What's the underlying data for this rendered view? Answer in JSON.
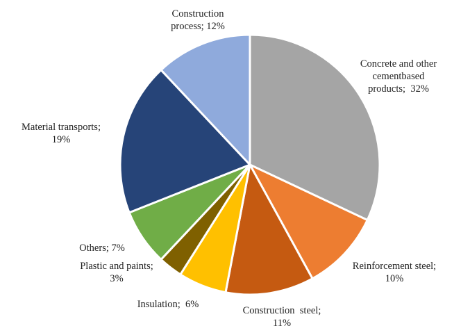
{
  "chart_data": {
    "type": "pie",
    "title": "",
    "slices": [
      {
        "label": "Concrete and other cementbased products",
        "text": "Concrete and other\ncementbased\nproducts;  32%",
        "value": 32,
        "color": "#a5a5a5"
      },
      {
        "label": "Reinforcement steel",
        "text": "Reinforcement steel;\n10%",
        "value": 10,
        "color": "#ed7d31"
      },
      {
        "label": "Construction steel",
        "text": "Construction  steel;\n11%",
        "value": 11,
        "color": "#c55a11"
      },
      {
        "label": "Insulation",
        "text": "Insulation;  6%",
        "value": 6,
        "color": "#ffc000"
      },
      {
        "label": "Plastic and paints",
        "text": "Plastic and paints;\n3%",
        "value": 3,
        "color": "#7f6000"
      },
      {
        "label": "Others",
        "text": "Others; 7%",
        "value": 7,
        "color": "#70ad47"
      },
      {
        "label": "Material transports",
        "text": "Material transports;\n19%",
        "value": 19,
        "color": "#264478"
      },
      {
        "label": "Construction process",
        "text": "Construction\nprocess; 12%",
        "value": 12,
        "color": "#8faadc"
      }
    ],
    "start": "12 o'clock",
    "direction": "clockwise",
    "legend": "none"
  }
}
